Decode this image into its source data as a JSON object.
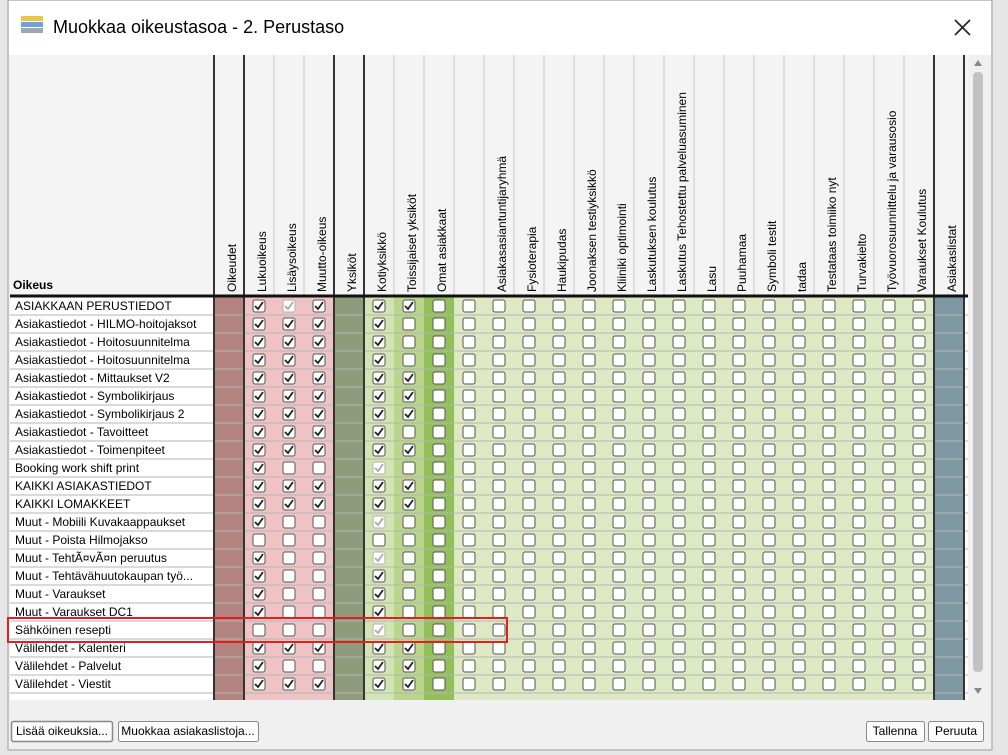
{
  "dialog": {
    "title": "Muokkaa oikeustasoa - 2. Perustaso",
    "row_header": "Oikeus",
    "highlight_row": 18,
    "columns": [
      {
        "label": "Oikeudet",
        "color": "#b3847f",
        "separator": true
      },
      {
        "label": "Lukuoikeus",
        "color": "#efc3c3"
      },
      {
        "label": "Lisäysoikeus",
        "color": "#efc3c3"
      },
      {
        "label": "Muutto-oikeus",
        "color": "#efc3c3"
      },
      {
        "label": "Yksiköt",
        "color": "#8e9c7c",
        "separator": true
      },
      {
        "label": "Kotiyksikkö",
        "color": "#d3e4b4"
      },
      {
        "label": "Toissijaiset yksiköt",
        "color": "#b9d68c"
      },
      {
        "label": "Omat asiakkaat",
        "color": "#92c05a"
      },
      {
        "label": null,
        "color": "#dce9c3"
      },
      {
        "label": "Asiakasasiantuntijaryhmä",
        "color": "#dce9c3"
      },
      {
        "label": "Fysioterapia",
        "color": "#dce9c3"
      },
      {
        "label": "Haukipudas",
        "color": "#dce9c3"
      },
      {
        "label": "Joonaksen testiyksikkö",
        "color": "#dce9c3"
      },
      {
        "label": "Kliiniki optimointi",
        "color": "#dce9c3"
      },
      {
        "label": "Laskutuksen koulutus",
        "color": "#dce9c3"
      },
      {
        "label": "Laskutus Tehostettu palveluasuminen",
        "color": "#dce9c3"
      },
      {
        "label": "Lasu",
        "color": "#dce9c3"
      },
      {
        "label": "Puuhamaa",
        "color": "#dce9c3"
      },
      {
        "label": "Symboli testit",
        "color": "#dce9c3"
      },
      {
        "label": "tadaa",
        "color": "#dce9c3"
      },
      {
        "label": "Testataas toimiiko nyt",
        "color": "#dce9c3"
      },
      {
        "label": "Turvakielto",
        "color": "#dce9c3"
      },
      {
        "label": "Työvuorosuunnittelu ja varausosio",
        "color": "#dce9c3"
      },
      {
        "label": "Varaukset Koulutus",
        "color": "#dce9c3"
      },
      {
        "label": "Asiakaslistat",
        "color": "#7d98a3",
        "separator": true
      }
    ],
    "rows": [
      {
        "label": "ASIAKKAAN PERUSTIEDOT",
        "states": [
          1,
          2,
          1,
          1,
          1,
          0,
          0,
          0,
          0,
          0,
          0,
          0,
          0,
          0,
          0,
          0,
          0,
          0,
          0,
          0,
          0,
          0
        ]
      },
      {
        "label": "Asiakastiedot - HILMO-hoitojaksot",
        "states": [
          1,
          1,
          1,
          1,
          0,
          0,
          0,
          0,
          0,
          0,
          0,
          0,
          0,
          0,
          0,
          0,
          0,
          0,
          0,
          0,
          0,
          0
        ]
      },
      {
        "label": "Asiakastiedot - Hoitosuunnitelma",
        "states": [
          1,
          1,
          1,
          1,
          0,
          0,
          0,
          0,
          0,
          0,
          0,
          0,
          0,
          0,
          0,
          0,
          0,
          0,
          0,
          0,
          0,
          0
        ]
      },
      {
        "label": "Asiakastiedot - Hoitosuunnitelma",
        "states": [
          1,
          1,
          1,
          1,
          0,
          0,
          0,
          0,
          0,
          0,
          0,
          0,
          0,
          0,
          0,
          0,
          0,
          0,
          0,
          0,
          0,
          0
        ]
      },
      {
        "label": "Asiakastiedot - Mittaukset V2",
        "states": [
          1,
          1,
          1,
          1,
          1,
          0,
          0,
          0,
          0,
          0,
          0,
          0,
          0,
          0,
          0,
          0,
          0,
          0,
          0,
          0,
          0,
          0
        ]
      },
      {
        "label": "Asiakastiedot - Symbolikirjaus",
        "states": [
          1,
          1,
          1,
          1,
          1,
          0,
          0,
          0,
          0,
          0,
          0,
          0,
          0,
          0,
          0,
          0,
          0,
          0,
          0,
          0,
          0,
          0
        ]
      },
      {
        "label": "Asiakastiedot - Symbolikirjaus 2",
        "states": [
          1,
          1,
          1,
          1,
          1,
          0,
          0,
          0,
          0,
          0,
          0,
          0,
          0,
          0,
          0,
          0,
          0,
          0,
          0,
          0,
          0,
          0
        ]
      },
      {
        "label": "Asiakastiedot - Tavoitteet",
        "states": [
          1,
          1,
          1,
          1,
          0,
          0,
          0,
          0,
          0,
          0,
          0,
          0,
          0,
          0,
          0,
          0,
          0,
          0,
          0,
          0,
          0,
          0
        ]
      },
      {
        "label": "Asiakastiedot - Toimenpiteet",
        "states": [
          1,
          1,
          1,
          1,
          1,
          0,
          0,
          0,
          0,
          0,
          0,
          0,
          0,
          0,
          0,
          0,
          0,
          0,
          0,
          0,
          0,
          0
        ]
      },
      {
        "label": "Booking work shift print",
        "states": [
          1,
          0,
          0,
          2,
          0,
          0,
          0,
          0,
          0,
          0,
          0,
          0,
          0,
          0,
          0,
          0,
          0,
          0,
          0,
          0,
          0,
          0
        ]
      },
      {
        "label": "KAIKKI ASIAKASTIEDOT",
        "states": [
          1,
          1,
          1,
          1,
          1,
          0,
          0,
          0,
          0,
          0,
          0,
          0,
          0,
          0,
          0,
          0,
          0,
          0,
          0,
          0,
          0,
          0
        ]
      },
      {
        "label": "KAIKKI LOMAKKEET",
        "states": [
          1,
          1,
          1,
          1,
          1,
          0,
          0,
          0,
          0,
          0,
          0,
          0,
          0,
          0,
          0,
          0,
          0,
          0,
          0,
          0,
          0,
          0
        ]
      },
      {
        "label": "Muut - Mobiili Kuvakaappaukset",
        "states": [
          1,
          0,
          0,
          2,
          0,
          0,
          0,
          0,
          0,
          0,
          0,
          0,
          0,
          0,
          0,
          0,
          0,
          0,
          0,
          0,
          0,
          0
        ]
      },
      {
        "label": "Muut - Poista Hilmojakso",
        "states": [
          0,
          0,
          0,
          0,
          0,
          0,
          0,
          0,
          0,
          0,
          0,
          0,
          0,
          0,
          0,
          0,
          0,
          0,
          0,
          0,
          0,
          0
        ]
      },
      {
        "label": "Muut - TehtÃ¤vÃ¤n peruutus",
        "states": [
          1,
          0,
          0,
          2,
          0,
          0,
          0,
          0,
          0,
          0,
          0,
          0,
          0,
          0,
          0,
          0,
          0,
          0,
          0,
          0,
          0,
          0
        ]
      },
      {
        "label": "Muut - Tehtävähuutokaupan työ...",
        "states": [
          1,
          0,
          0,
          1,
          0,
          0,
          0,
          0,
          0,
          0,
          0,
          0,
          0,
          0,
          0,
          0,
          0,
          0,
          0,
          0,
          0,
          0
        ]
      },
      {
        "label": "Muut - Varaukset",
        "states": [
          1,
          0,
          0,
          1,
          0,
          0,
          0,
          0,
          0,
          0,
          0,
          0,
          0,
          0,
          0,
          0,
          0,
          0,
          0,
          0,
          0,
          0
        ]
      },
      {
        "label": "Muut - Varaukset DC1",
        "states": [
          1,
          0,
          0,
          1,
          0,
          0,
          0,
          0,
          0,
          0,
          0,
          0,
          0,
          0,
          0,
          0,
          0,
          0,
          0,
          0,
          0,
          0
        ]
      },
      {
        "label": "Sähköinen resepti",
        "states": [
          0,
          0,
          0,
          2,
          0,
          0,
          0,
          0,
          0,
          0,
          0,
          0,
          0,
          0,
          0,
          0,
          0,
          0,
          0,
          0,
          0,
          0
        ]
      },
      {
        "label": "Välilehdet - Kalenteri",
        "states": [
          1,
          1,
          1,
          1,
          1,
          0,
          0,
          0,
          0,
          0,
          0,
          0,
          0,
          0,
          0,
          0,
          0,
          0,
          0,
          0,
          0,
          0
        ]
      },
      {
        "label": "Välilehdet - Palvelut",
        "states": [
          1,
          0,
          0,
          1,
          1,
          0,
          0,
          0,
          0,
          0,
          0,
          0,
          0,
          0,
          0,
          0,
          0,
          0,
          0,
          0,
          0,
          0
        ]
      },
      {
        "label": "Välilehdet - Viestit",
        "states": [
          1,
          1,
          1,
          1,
          1,
          0,
          0,
          0,
          0,
          0,
          0,
          0,
          0,
          0,
          0,
          0,
          0,
          0,
          0,
          0,
          0,
          0
        ]
      }
    ],
    "buttons": {
      "add": "Lisää oikeuksia...",
      "edit_lists": "Muokkaa asiakaslistoja...",
      "save": "Tallenna",
      "cancel": "Peruuta"
    }
  }
}
